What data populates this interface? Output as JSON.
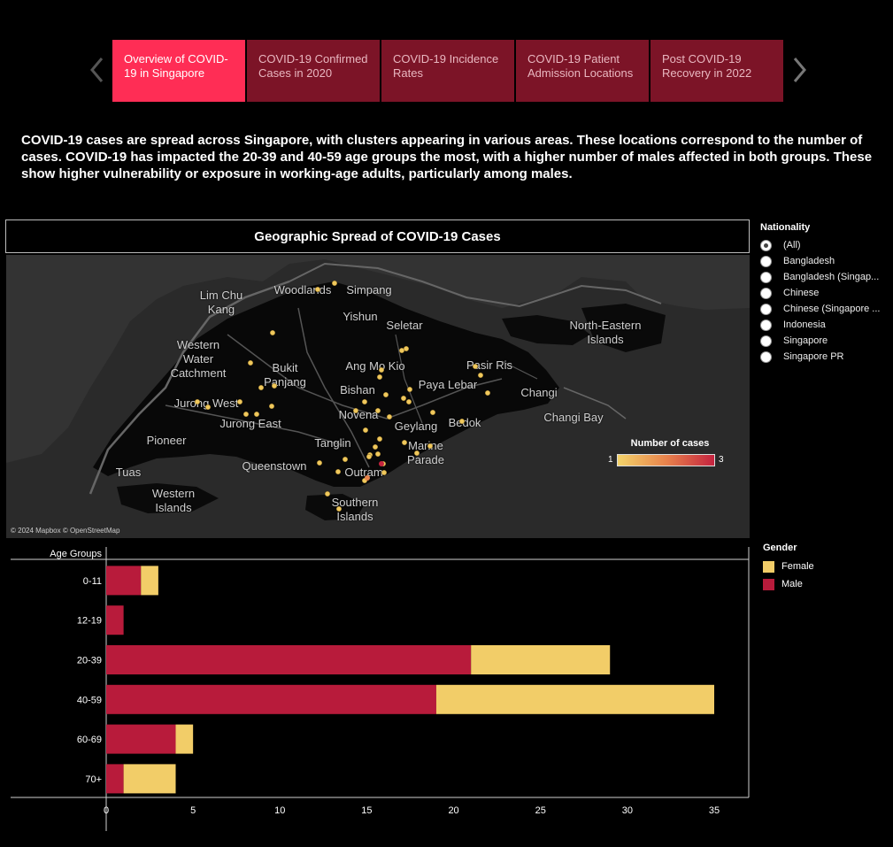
{
  "nav": {
    "tabs": [
      {
        "label": "Overview of COVID-19 in Singapore",
        "active": true
      },
      {
        "label": "COVID-19 Confirmed Cases in 2020",
        "active": false
      },
      {
        "label": "COVID-19 Incidence Rates",
        "active": false
      },
      {
        "label": "COVID-19 Patient Admission Locations",
        "active": false
      },
      {
        "label": "Post COVID-19 Recovery in 2022",
        "active": false
      }
    ]
  },
  "summary": "COVID-19 cases are spread across Singapore, with clusters appearing in various areas. These locations correspond to the number of cases. COVID-19 has impacted the 20-39 and 40-59 age groups the most, with a higher number of males affected in both groups. These show higher vulnerability or exposure in working-age adults, particularly among males.",
  "map": {
    "title": "Geographic Spread of COVID-19 Cases",
    "attribution": "© 2024 Mapbox © OpenStreetMap",
    "places": [
      "Lim Chu Kang",
      "Woodlands",
      "Simpang",
      "Yishun",
      "Seletar",
      "North-Eastern Islands",
      "Western Water Catchment",
      "Bukit Panjang",
      "Ang Mo Kio",
      "Pasir Ris",
      "Paya Lebar",
      "Bishan",
      "Changi",
      "Jurong West",
      "Jurong East",
      "Novena",
      "Geylang",
      "Bedok",
      "Changi Bay",
      "Pioneer",
      "Tanglin",
      "Marine Parade",
      "Queenstown",
      "Outram",
      "Tuas",
      "Western Islands",
      "Southern Islands"
    ],
    "legend": {
      "title": "Number of cases",
      "min": "1",
      "max": "3",
      "colors": [
        "#f3d36a",
        "#c4233f"
      ]
    }
  },
  "filter": {
    "title": "Nationality",
    "options": [
      "(All)",
      "Bangladesh",
      "Bangladesh (Singap...",
      "Chinese",
      "Chinese (Singapore ...",
      "Indonesia",
      "Singapore",
      "Singapore PR"
    ],
    "selected": "(All)"
  },
  "gender_legend": {
    "title": "Gender",
    "items": [
      {
        "label": "Female",
        "color": "#f2cd68"
      },
      {
        "label": "Male",
        "color": "#b81b3b"
      }
    ]
  },
  "chart_data": {
    "type": "bar",
    "orientation": "horizontal",
    "stacked": true,
    "ylabel": "Age Groups",
    "categories": [
      "0-11",
      "12-19",
      "20-39",
      "40-59",
      "60-69",
      "70+"
    ],
    "series": [
      {
        "name": "Male",
        "color": "#b81b3b",
        "values": [
          2,
          1,
          21,
          19,
          4,
          1
        ]
      },
      {
        "name": "Female",
        "color": "#f2cd68",
        "values": [
          1,
          0,
          8,
          16,
          1,
          3
        ]
      }
    ],
    "xlim": [
      0,
      37
    ],
    "xticks": [
      0,
      5,
      10,
      15,
      20,
      25,
      30,
      35
    ]
  }
}
